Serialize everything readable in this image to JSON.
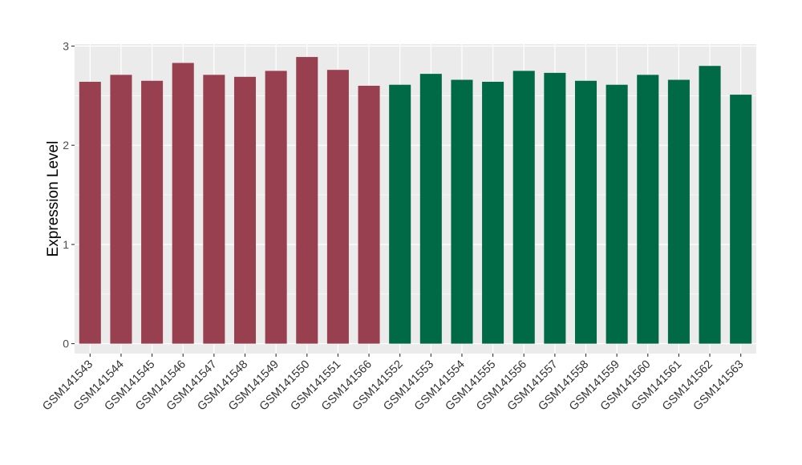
{
  "chart_data": {
    "type": "bar",
    "title": "",
    "xlabel": "",
    "ylabel": "Expression Level",
    "ylim": [
      -0.1,
      3.02
    ],
    "yticks": [
      0,
      1,
      2,
      3
    ],
    "grid": true,
    "legend": "none",
    "categories": [
      "GSM141543",
      "GSM141544",
      "GSM141545",
      "GSM141546",
      "GSM141547",
      "GSM141548",
      "GSM141549",
      "GSM141550",
      "GSM141551",
      "GSM141566",
      "GSM141552",
      "GSM141553",
      "GSM141554",
      "GSM141555",
      "GSM141556",
      "GSM141557",
      "GSM141558",
      "GSM141559",
      "GSM141560",
      "GSM141561",
      "GSM141562",
      "GSM141563"
    ],
    "values": [
      2.64,
      2.71,
      2.65,
      2.83,
      2.71,
      2.69,
      2.75,
      2.89,
      2.76,
      2.6,
      2.61,
      2.72,
      2.66,
      2.64,
      2.75,
      2.73,
      2.65,
      2.61,
      2.71,
      2.66,
      2.8,
      2.51
    ],
    "groups": [
      "a",
      "a",
      "a",
      "a",
      "a",
      "a",
      "a",
      "a",
      "a",
      "a",
      "b",
      "b",
      "b",
      "b",
      "b",
      "b",
      "b",
      "b",
      "b",
      "b",
      "b",
      "b"
    ],
    "colors": {
      "a": "#98404F",
      "b": "#006946",
      "panel": "#EBEBEB",
      "grid": "#FFFFFF"
    }
  }
}
